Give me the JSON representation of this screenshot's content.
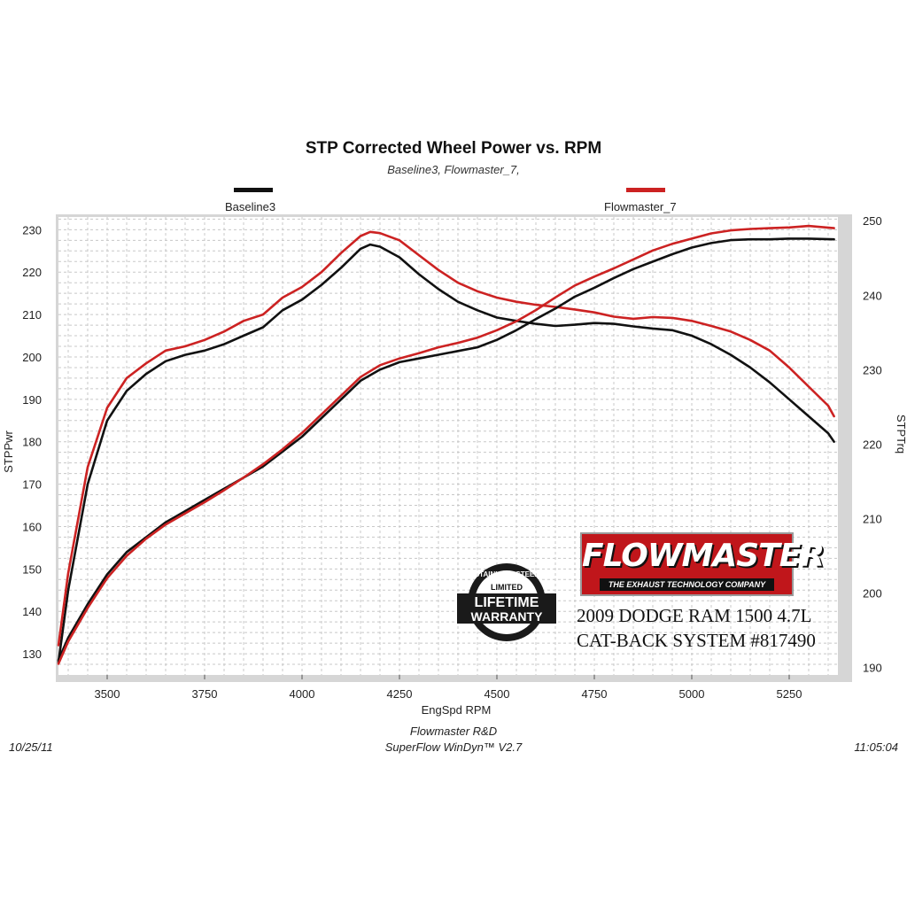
{
  "chart_data": {
    "type": "line",
    "title": "STP Corrected Wheel Power vs. RPM",
    "subtitle": "Baseline3, Flowmaster_7,",
    "xlabel": "EngSpd  RPM",
    "ylabel_left": "STPPwr",
    "ylabel_right": "STPTrq",
    "xlim": [
      3375,
      5375
    ],
    "ylim_left": [
      125,
      233
    ],
    "ylim_right": [
      189,
      250.5
    ],
    "x_ticks": [
      3500,
      3750,
      4000,
      4250,
      4500,
      4750,
      5000,
      5250
    ],
    "y_ticks_left": [
      130,
      140,
      150,
      160,
      170,
      180,
      190,
      200,
      210,
      220,
      230
    ],
    "y_ticks_right": [
      190,
      200,
      210,
      220,
      230,
      240,
      250
    ],
    "grid": true,
    "legend": [
      {
        "name": "Baseline3",
        "color": "#111111"
      },
      {
        "name": "Flowmaster_7",
        "color": "#cc2222"
      }
    ],
    "series": [
      {
        "name": "Baseline3",
        "measure": "STPPwr",
        "axis": "left",
        "color": "#111111",
        "x": [
          3375,
          3400,
          3450,
          3500,
          3550,
          3600,
          3650,
          3700,
          3750,
          3800,
          3850,
          3900,
          3950,
          4000,
          4050,
          4100,
          4150,
          4175,
          4200,
          4250,
          4300,
          4350,
          4400,
          4450,
          4500,
          4550,
          4600,
          4650,
          4700,
          4750,
          4800,
          4850,
          4900,
          4950,
          5000,
          5050,
          5100,
          5150,
          5200,
          5250,
          5300,
          5350,
          5365
        ],
        "y": [
          128,
          145,
          170,
          185,
          192,
          196,
          199,
          200.5,
          201.5,
          203,
          205,
          207,
          211,
          213.5,
          217,
          221,
          225.5,
          226.5,
          226,
          223.5,
          219.5,
          216,
          213,
          211,
          209.3,
          208.5,
          207.8,
          207.3,
          207.6,
          208,
          207.8,
          207.2,
          206.7,
          206.3,
          205,
          203,
          200.5,
          197.5,
          194,
          190,
          186,
          182,
          180
        ]
      },
      {
        "name": "Flowmaster_7",
        "measure": "STPPwr",
        "axis": "left",
        "color": "#cc2222",
        "x": [
          3375,
          3400,
          3450,
          3500,
          3550,
          3600,
          3650,
          3700,
          3750,
          3800,
          3850,
          3900,
          3950,
          4000,
          4050,
          4100,
          4150,
          4175,
          4200,
          4250,
          4300,
          4350,
          4400,
          4450,
          4500,
          4550,
          4600,
          4650,
          4700,
          4750,
          4800,
          4850,
          4900,
          4950,
          5000,
          5050,
          5100,
          5150,
          5200,
          5250,
          5300,
          5350,
          5365
        ],
        "y": [
          132,
          149,
          174,
          188,
          195,
          198.5,
          201.5,
          202.5,
          204,
          206,
          208.5,
          210,
          214,
          216.5,
          220,
          224.5,
          228.5,
          229.5,
          229.2,
          227.5,
          224,
          220.5,
          217.5,
          215.5,
          214,
          213,
          212.3,
          211.8,
          211.2,
          210.5,
          209.5,
          209,
          209.4,
          209.2,
          208.5,
          207.3,
          206,
          204,
          201.5,
          197.5,
          193,
          188.5,
          186
        ]
      },
      {
        "name": "Baseline3",
        "measure": "STPTrq",
        "axis": "right",
        "color": "#111111",
        "x": [
          3375,
          3400,
          3450,
          3500,
          3550,
          3600,
          3650,
          3700,
          3750,
          3800,
          3850,
          3900,
          3950,
          4000,
          4050,
          4100,
          4150,
          4200,
          4250,
          4300,
          4350,
          4400,
          4450,
          4500,
          4550,
          4600,
          4650,
          4700,
          4750,
          4800,
          4850,
          4900,
          4950,
          5000,
          5050,
          5100,
          5150,
          5200,
          5250,
          5300,
          5365
        ],
        "y": [
          191,
          194,
          198.5,
          202.5,
          205.5,
          207.5,
          209.5,
          211,
          212.5,
          214,
          215.5,
          217,
          219,
          221,
          223.5,
          226,
          228.5,
          230,
          231,
          231.5,
          232,
          232.5,
          233,
          234,
          235.3,
          236.8,
          238.2,
          239.8,
          241,
          242.3,
          243.5,
          244.5,
          245.5,
          246.4,
          247,
          247.4,
          247.5,
          247.5,
          247.6,
          247.6,
          247.5
        ]
      },
      {
        "name": "Flowmaster_7",
        "measure": "STPTrq",
        "axis": "right",
        "color": "#cc2222",
        "x": [
          3375,
          3400,
          3450,
          3500,
          3550,
          3600,
          3650,
          3700,
          3750,
          3800,
          3850,
          3900,
          3950,
          4000,
          4050,
          4100,
          4150,
          4200,
          4250,
          4300,
          4350,
          4400,
          4450,
          4500,
          4550,
          4600,
          4650,
          4700,
          4750,
          4800,
          4850,
          4900,
          4950,
          5000,
          5050,
          5100,
          5150,
          5200,
          5250,
          5300,
          5365
        ],
        "y": [
          190.5,
          193.5,
          198,
          202,
          205,
          207.3,
          209.2,
          210.7,
          212.2,
          213.8,
          215.5,
          217.3,
          219.3,
          221.5,
          224,
          226.5,
          229,
          230.6,
          231.5,
          232.2,
          233,
          233.6,
          234.3,
          235.3,
          236.5,
          238,
          239.7,
          241.3,
          242.5,
          243.6,
          244.8,
          246,
          246.9,
          247.6,
          248.3,
          248.7,
          248.9,
          249,
          249.1,
          249.3,
          249
        ]
      }
    ]
  },
  "footer": {
    "date": "10/25/11",
    "lab": "Flowmaster R&D",
    "software": "SuperFlow WinDyn™ V2.7",
    "time": "11:05:04"
  },
  "overlay": {
    "brand": "FLOWMASTER",
    "brand_tagline": "THE EXHAUST TECHNOLOGY COMPANY",
    "badge_lines": [
      "STAINLESS STEEL",
      "LIMITED",
      "LIFETIME",
      "WARRANTY"
    ],
    "vehicle": "2009 DODGE RAM 1500 4.7L",
    "system": "CAT-BACK SYSTEM #817490"
  }
}
